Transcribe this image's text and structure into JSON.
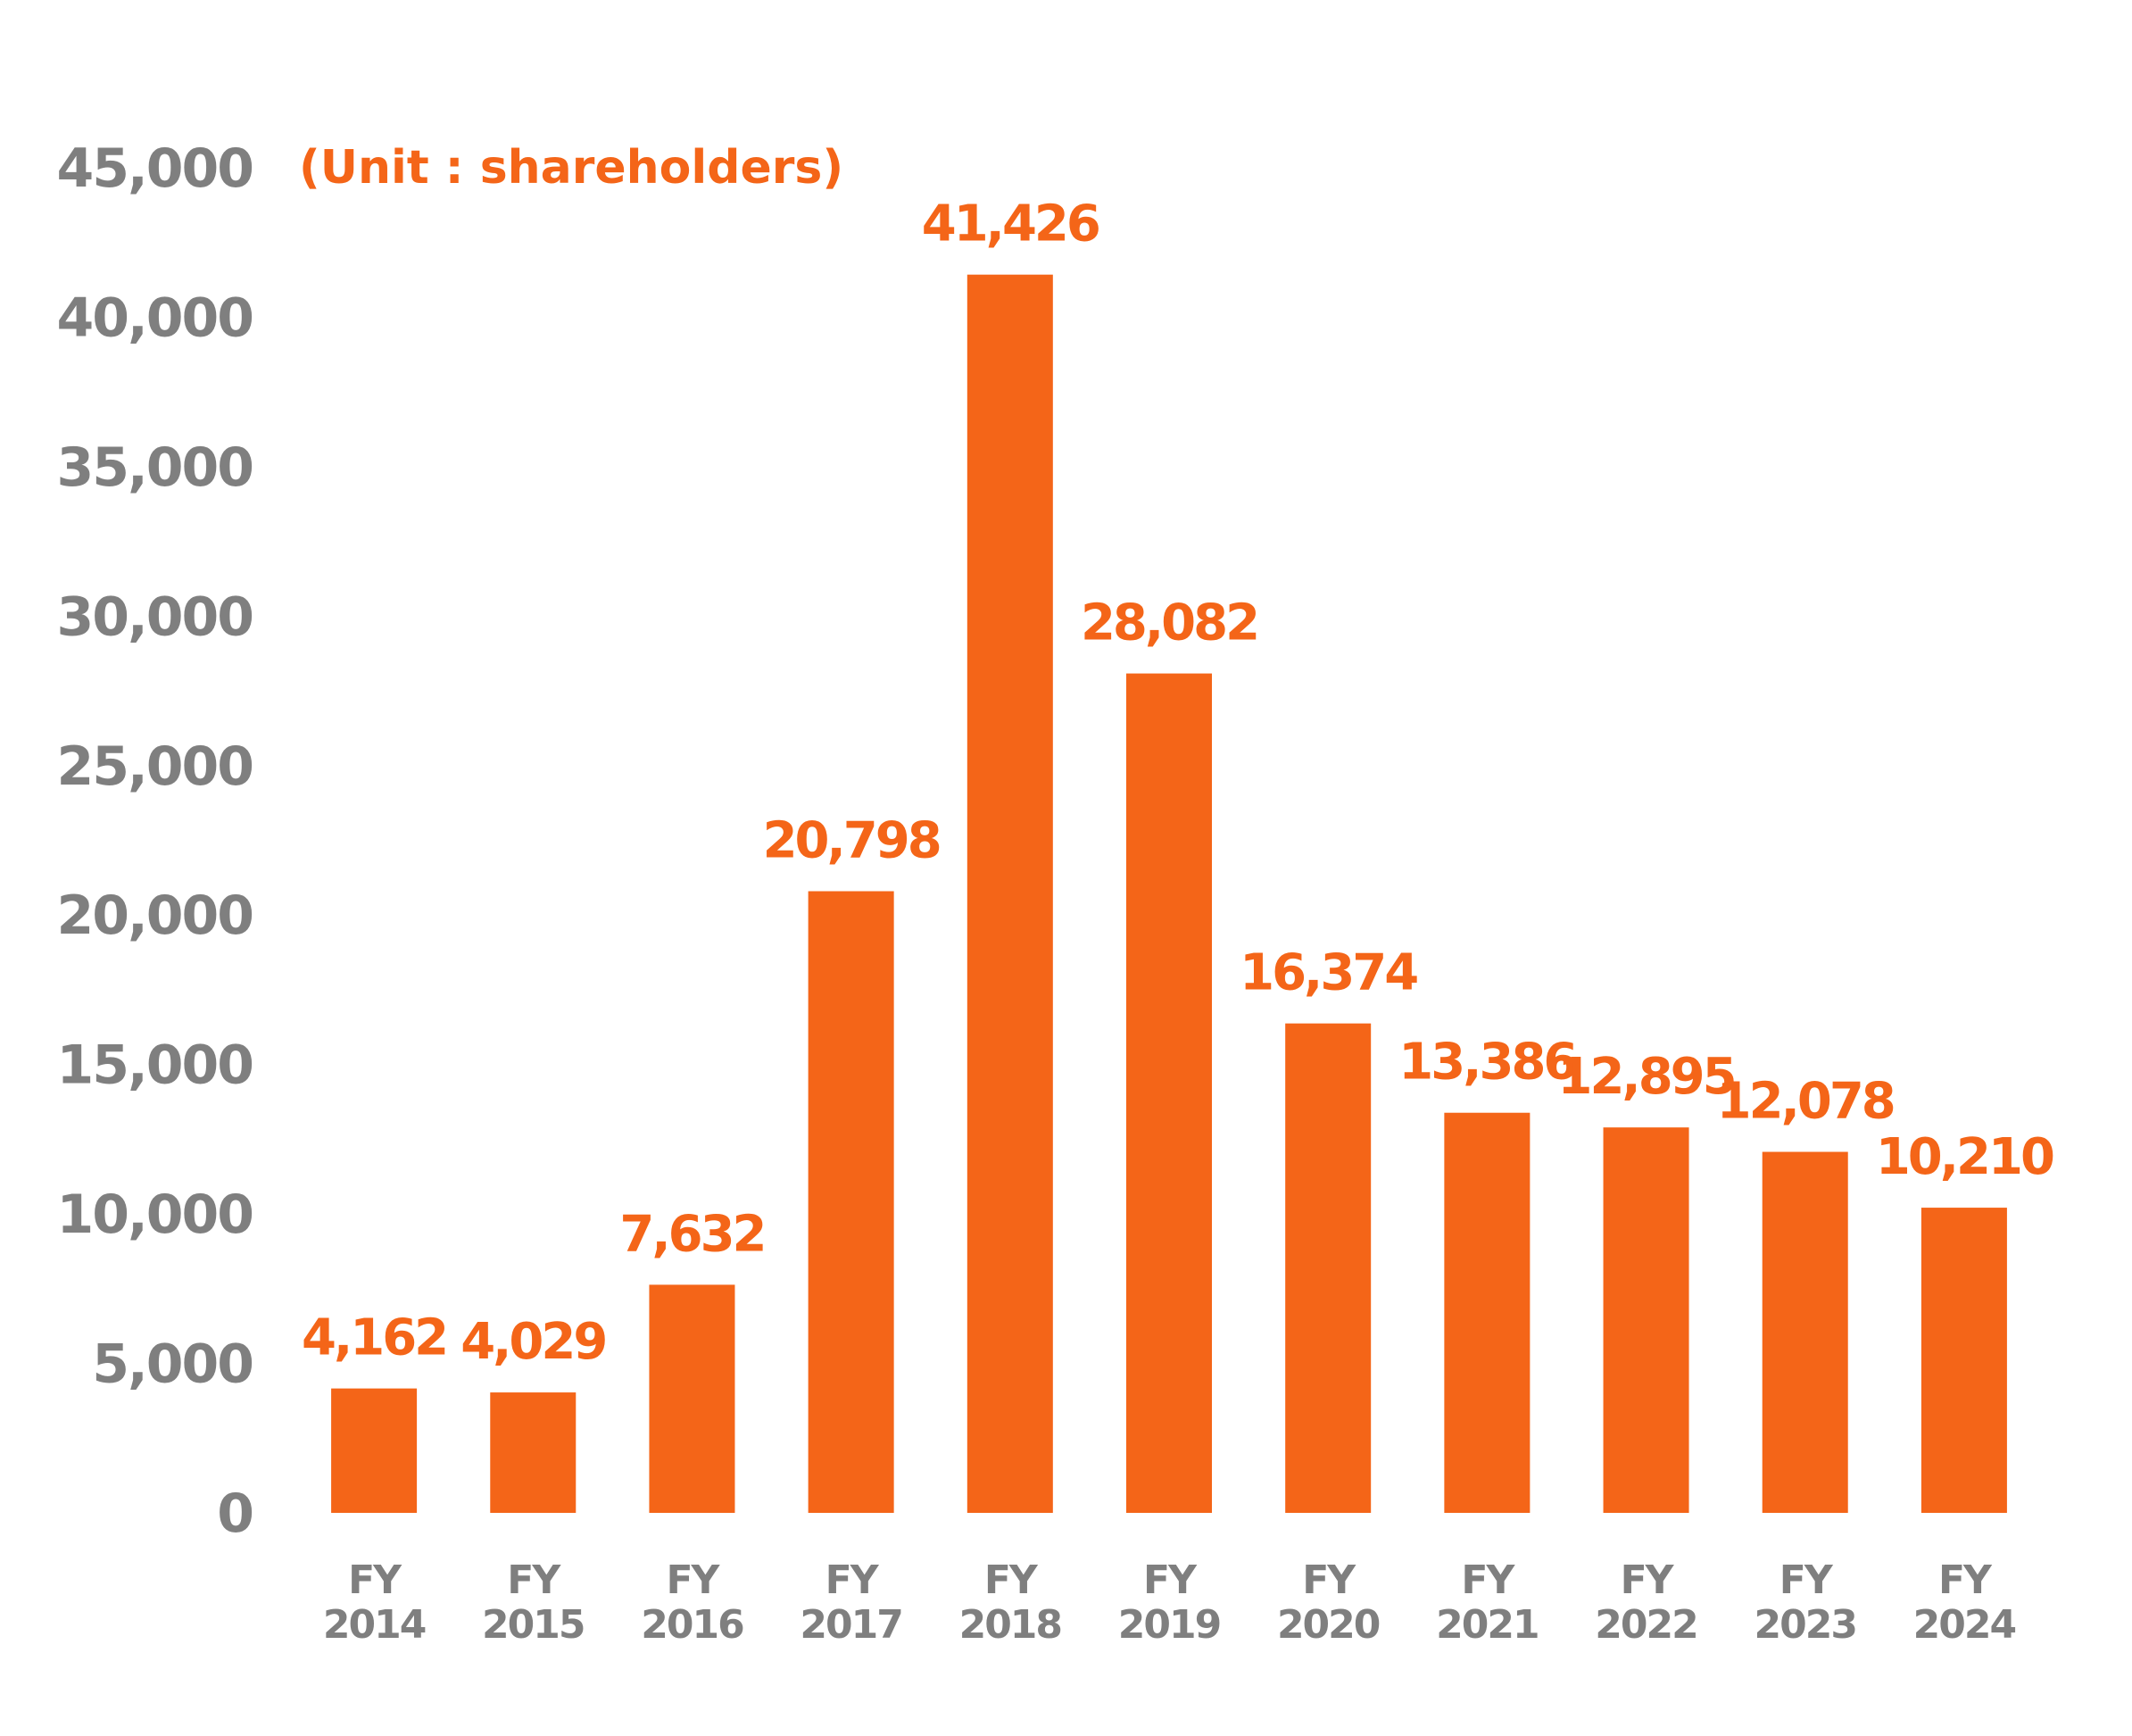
{
  "colors": {
    "bar": "#f46518",
    "value_label": "#f46518",
    "unit_label": "#f46518",
    "axis_text": "#7f7f7f",
    "background": "#ffffff"
  },
  "chart_data": {
    "type": "bar",
    "unit_label": "(Unit : shareholders)",
    "categories": [
      [
        "FY",
        "2014"
      ],
      [
        "FY",
        "2015"
      ],
      [
        "FY",
        "2016"
      ],
      [
        "FY",
        "2017"
      ],
      [
        "FY",
        "2018"
      ],
      [
        "FY",
        "2019"
      ],
      [
        "FY",
        "2020"
      ],
      [
        "FY",
        "2021"
      ],
      [
        "FY",
        "2022"
      ],
      [
        "FY",
        "2023"
      ],
      [
        "FY",
        "2024"
      ]
    ],
    "values": [
      4162,
      4029,
      7632,
      20798,
      41426,
      28082,
      16374,
      13386,
      12895,
      12078,
      10210
    ],
    "value_labels": [
      "4,162",
      "4,029",
      "7,632",
      "20,798",
      "41,426",
      "28,082",
      "16,374",
      "13,386",
      "12,895",
      "12,078",
      "10,210"
    ],
    "ylim": [
      0,
      45000
    ],
    "yticks": [
      0,
      5000,
      10000,
      15000,
      20000,
      25000,
      30000,
      35000,
      40000,
      45000
    ],
    "ytick_labels": [
      "0",
      "5,000",
      "10,000",
      "15,000",
      "20,000",
      "25,000",
      "30,000",
      "35,000",
      "40,000",
      "45,000"
    ],
    "grid": false,
    "legend": "none"
  }
}
